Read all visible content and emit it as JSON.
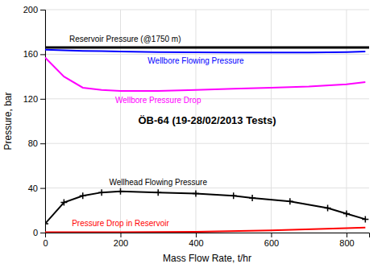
{
  "chart_data": {
    "type": "line",
    "title": "ÖB-64 (19-28/02/2013 Tests)",
    "x_label": "Mass Flow Rate, t/hr",
    "y_label": "Pressure, bar",
    "xlim": [
      0,
      860
    ],
    "ylim": [
      0,
      200
    ],
    "xticks": [
      0,
      200,
      400,
      600,
      800
    ],
    "yticks": [
      0,
      40,
      80,
      120,
      160,
      200
    ],
    "grid": true,
    "series": [
      {
        "name": "Reservoir Pressure (@1750 m)",
        "color": "#000000",
        "x": [
          0,
          860
        ],
        "values": [
          166,
          166
        ]
      },
      {
        "name": "Wellbore Flowing Pressure",
        "color": "#0000ff",
        "x": [
          0,
          50,
          100,
          150,
          200,
          300,
          400,
          500,
          600,
          700,
          800,
          850
        ],
        "values": [
          164,
          163.5,
          163,
          162.8,
          162.5,
          162,
          161.8,
          161.5,
          161.5,
          161.5,
          162,
          162.5
        ]
      },
      {
        "name": "Wellbore Pressure Drop",
        "color": "#ff00ff",
        "x": [
          0,
          50,
          100,
          150,
          200,
          300,
          400,
          500,
          600,
          700,
          800,
          850
        ],
        "values": [
          157,
          140,
          130,
          128,
          127,
          127,
          128,
          129,
          130,
          131,
          133,
          135
        ]
      },
      {
        "name": "Wellhead Flowing Pressure",
        "color": "#000000",
        "marker": "plus",
        "x": [
          0,
          50,
          100,
          150,
          200,
          300,
          400,
          500,
          550,
          650,
          750,
          800,
          850
        ],
        "values": [
          8,
          27,
          33,
          36,
          37,
          36,
          35,
          33,
          31,
          28,
          22,
          17,
          12
        ]
      },
      {
        "name": "Pressure Drop in Reservoir",
        "color": "#ff0000",
        "x": [
          0,
          200,
          400,
          600,
          800,
          850
        ],
        "values": [
          0.3,
          0.4,
          0.8,
          2.0,
          4.0,
          4.5
        ]
      }
    ]
  }
}
